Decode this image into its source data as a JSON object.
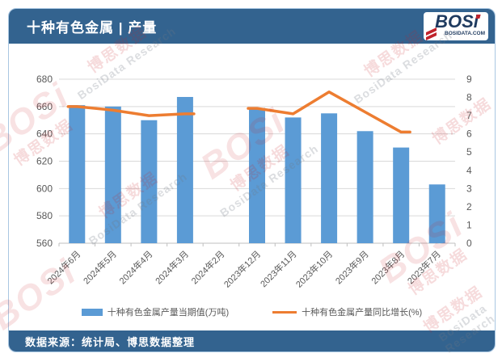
{
  "header": {
    "title": "十种有色金属 | 产量",
    "logo": {
      "text": "BOSi",
      "domain": "BOSIDATA.COM"
    }
  },
  "footer": {
    "source": "数据来源：统计局、博思数据整理"
  },
  "watermark": {
    "brand": "BOSi",
    "brand_cn": "博思数据",
    "research": "BosiData Research"
  },
  "colors": {
    "header_bg": "#33638F",
    "bar": "#5B9BD5",
    "line": "#ED7D31",
    "axis_text": "#595959",
    "gridline": "#D9D9D9",
    "watermark_red": "#C62028"
  },
  "chart_data": {
    "type": "bar",
    "subtype": "bar+line combo",
    "title": "十种有色金属 | 产量",
    "categories": [
      "2024年6月",
      "2024年5月",
      "2024年4月",
      "2024年3月",
      "2024年2月",
      "2023年12月",
      "2023年11月",
      "2023年10月",
      "2023年9月",
      "2023年8月",
      "2023年7月"
    ],
    "series": [
      {
        "name": "十种有色金属产量当期值(万吨)",
        "type": "bar",
        "axis": "left",
        "color": "#5B9BD5",
        "values": [
          661,
          660,
          650,
          667,
          null,
          659,
          652,
          655,
          642,
          630,
          603
        ]
      },
      {
        "name": "十种有色金属产量同比增长(%)",
        "type": "line",
        "axis": "right",
        "color": "#ED7D31",
        "values": [
          7.5,
          7.3,
          7.0,
          7.1,
          null,
          7.4,
          7.1,
          8.3,
          7.2,
          6.1,
          null
        ]
      }
    ],
    "left_axis": {
      "min": 560,
      "max": 680,
      "step": 20
    },
    "right_axis": {
      "min": 0,
      "max": 9,
      "step": 1
    },
    "grid": true,
    "legend_position": "bottom",
    "x_label_rotation": -45
  }
}
